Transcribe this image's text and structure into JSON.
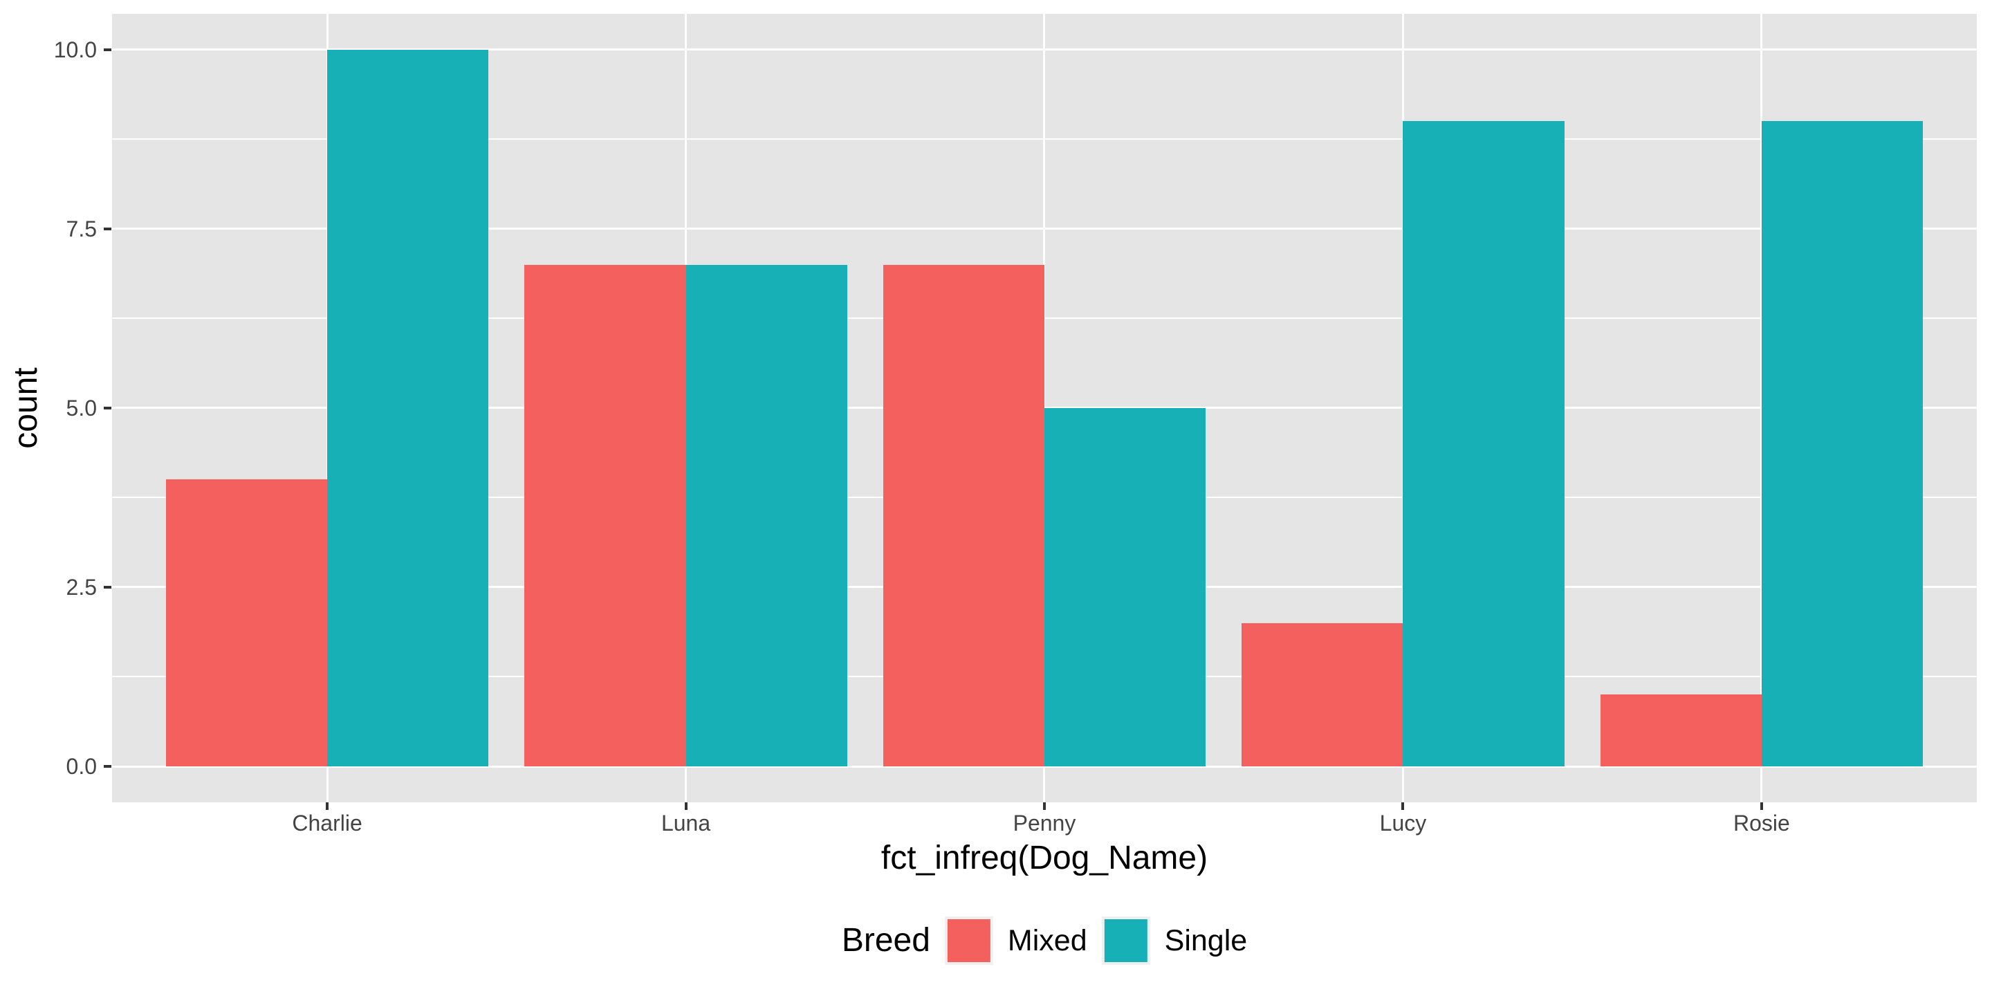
{
  "chart_data": {
    "type": "bar",
    "bar_mode": "dodge",
    "title": "",
    "xlabel": "fct_infreq(Dog_Name)",
    "ylabel": "count",
    "categories": [
      "Charlie",
      "Luna",
      "Penny",
      "Lucy",
      "Rosie"
    ],
    "series": [
      {
        "name": "Mixed",
        "color": "#F4605D",
        "values": [
          4,
          7,
          7,
          2,
          1
        ]
      },
      {
        "name": "Single",
        "color": "#18B0B7",
        "values": [
          10,
          7,
          5,
          9,
          9
        ]
      }
    ],
    "legend": {
      "title": "Breed",
      "position": "bottom",
      "entries": [
        "Mixed",
        "Single"
      ]
    },
    "y_axis": {
      "tick_labels": [
        "0.0",
        "2.5",
        "5.0",
        "7.5",
        "10.0"
      ],
      "tick_values": [
        0,
        2.5,
        5,
        7.5,
        10
      ],
      "minor_tick_values": [
        1.25,
        3.75,
        6.25,
        8.75
      ],
      "limits": [
        -0.5,
        10.5
      ]
    },
    "style": {
      "panel_background": "#E5E5E5",
      "grid_color": "#FFFFFF",
      "grid_on": true,
      "tick_mark_color": "#333333",
      "axis_text_color": "#444444",
      "axis_title_color": "#000000"
    }
  }
}
